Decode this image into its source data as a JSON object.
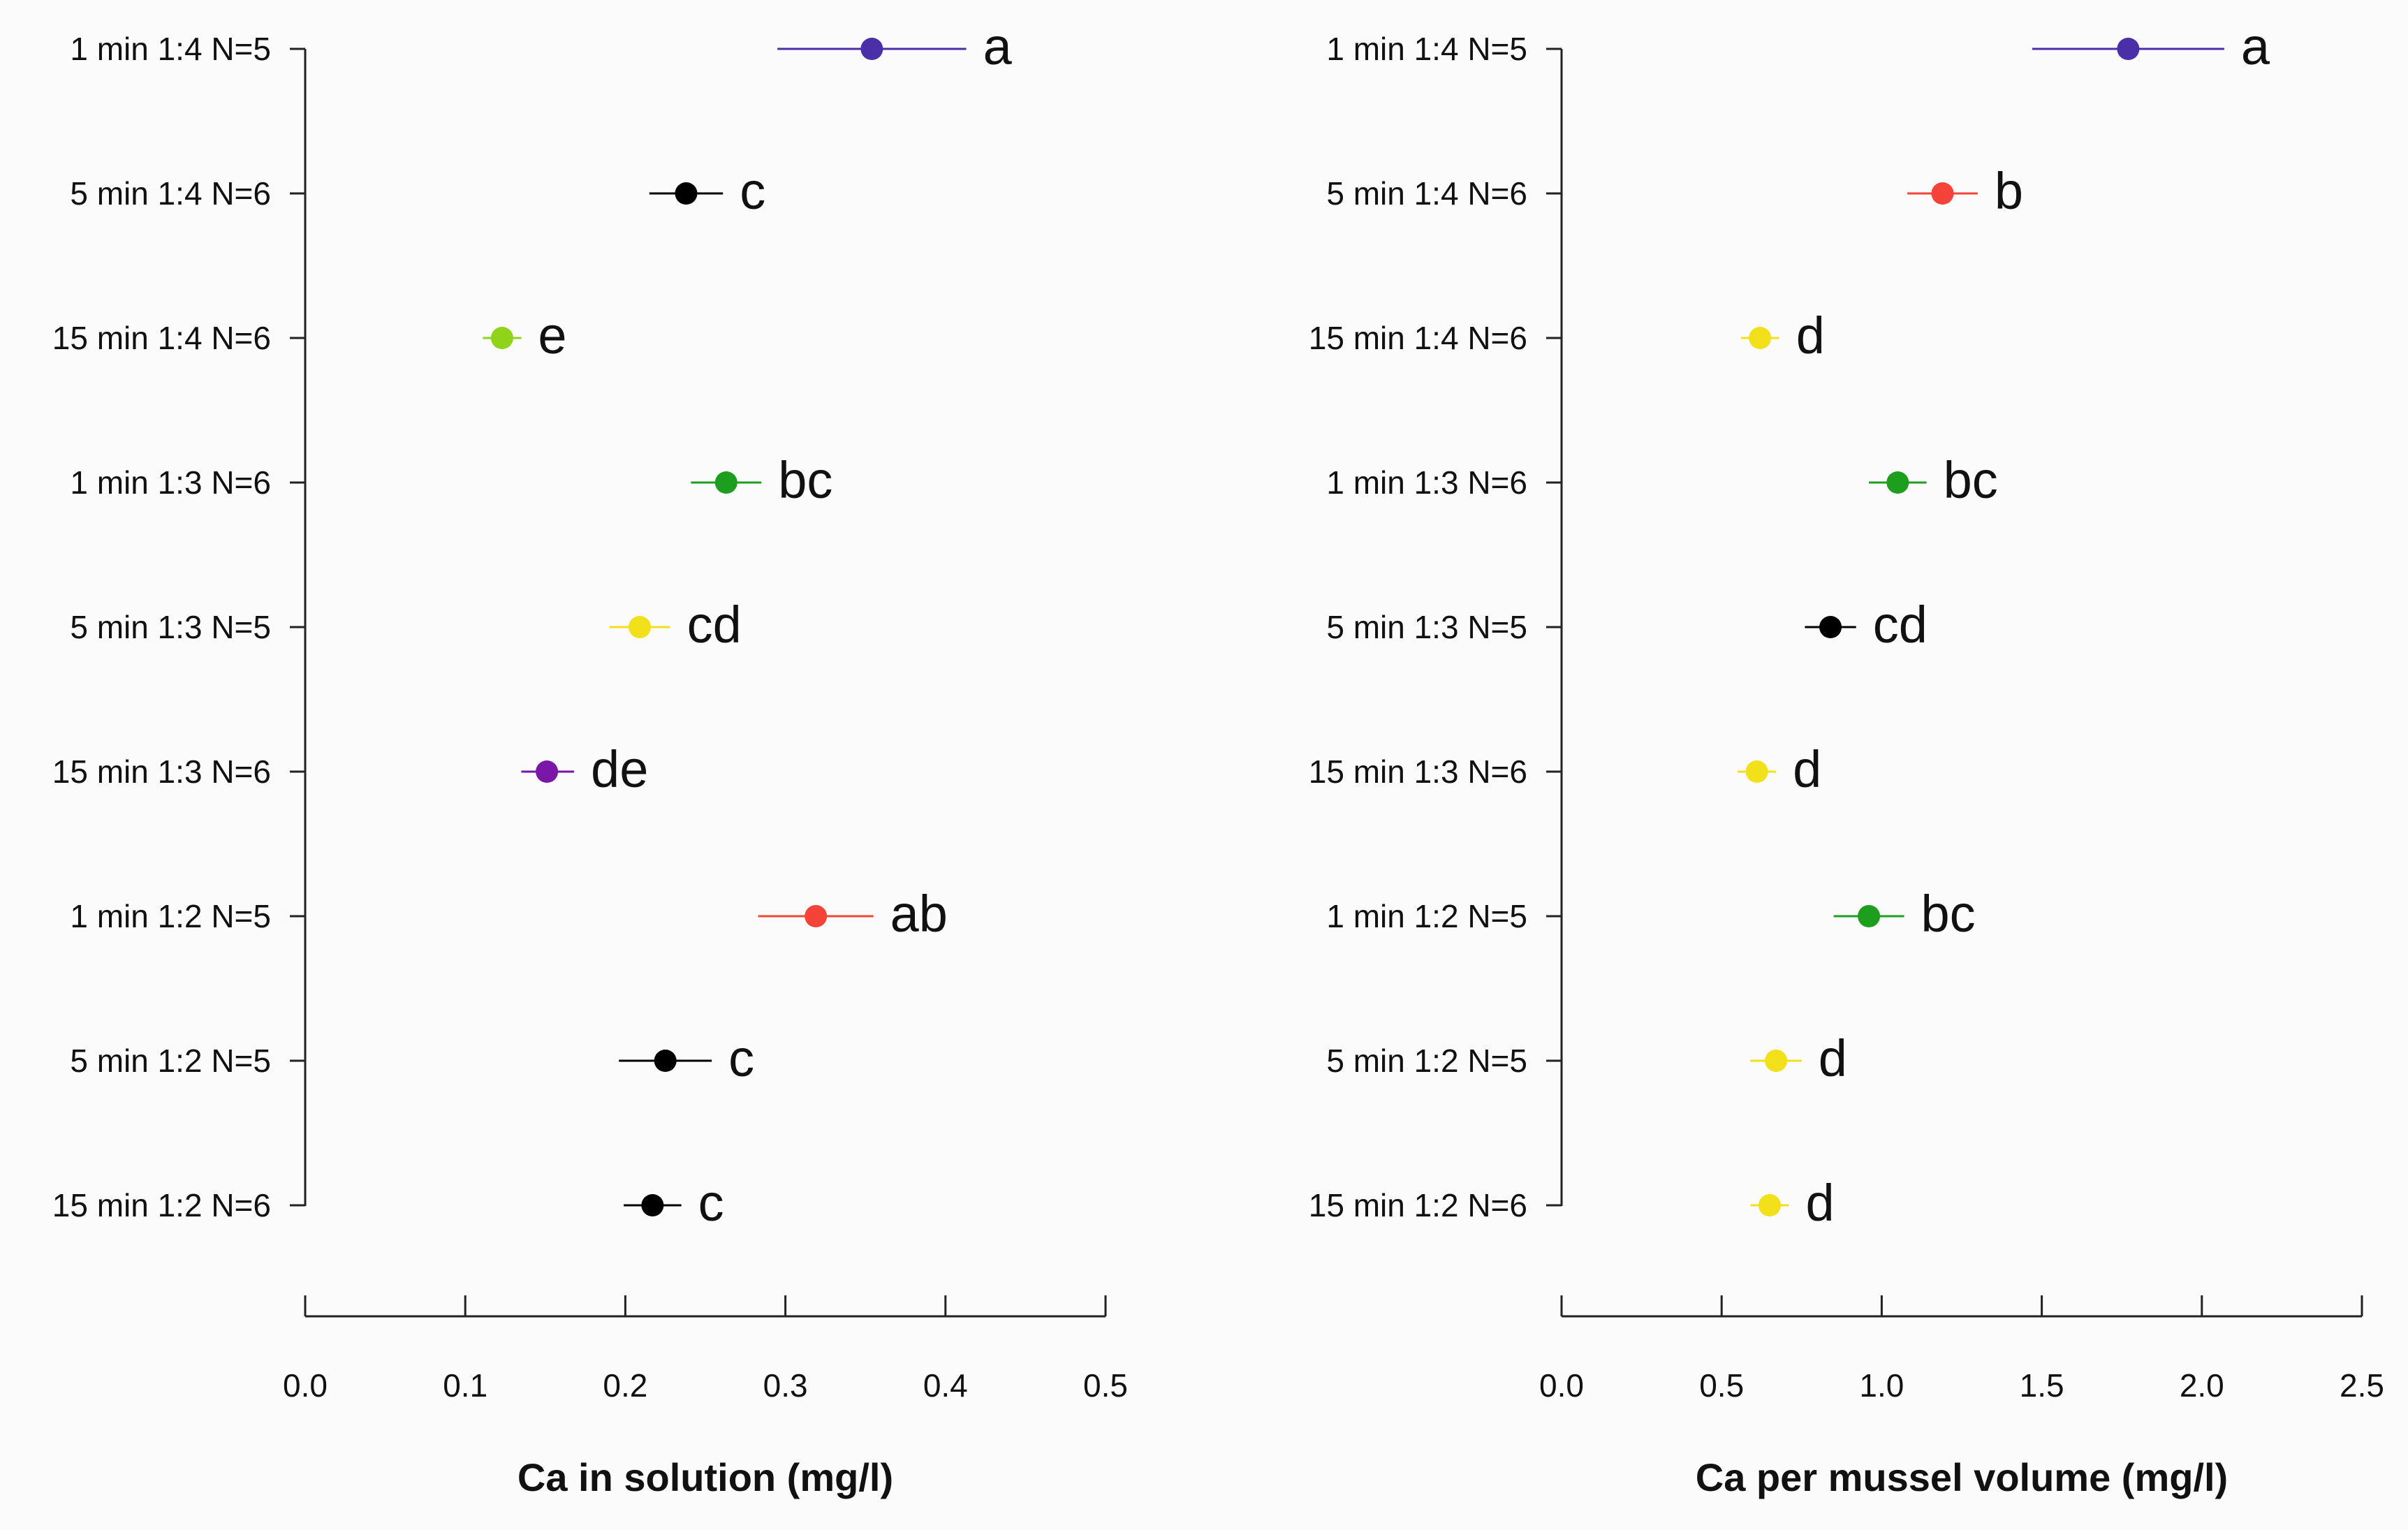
{
  "colors": {
    "indigo": "#4b2fa8",
    "red": "#f5433a",
    "green": "#1e9e1e",
    "lime": "#8fd31a",
    "yellow": "#f2e01a",
    "purple": "#7a16a8",
    "black": "#000000"
  },
  "chart_data": [
    {
      "type": "scatter",
      "subtype": "dot-with-error-bars",
      "xlabel": "Ca in solution (mg/l)",
      "xlim": [
        0,
        0.5
      ],
      "xticks": [
        0,
        0.1,
        0.2,
        0.3,
        0.4,
        0.5
      ],
      "xtick_labels": [
        "0.0",
        "0.1",
        "0.2",
        "0.3",
        "0.4",
        "0.5"
      ],
      "categories": [
        "1 min 1:4 N=5",
        "5 min 1:4 N=6",
        "15 min 1:4 N=6",
        "1 min 1:3 N=6",
        "5 min 1:3 N=5",
        "15 min 1:3 N=6",
        "1 min 1:2 N=5",
        "5 min 1:2 N=5",
        "15 min 1:2 N=6"
      ],
      "points": [
        {
          "value": 0.354,
          "low": 0.295,
          "high": 0.413,
          "letter": "a",
          "color": "indigo"
        },
        {
          "value": 0.238,
          "low": 0.215,
          "high": 0.261,
          "letter": "c",
          "color": "black"
        },
        {
          "value": 0.123,
          "low": 0.111,
          "high": 0.135,
          "letter": "e",
          "color": "lime"
        },
        {
          "value": 0.263,
          "low": 0.241,
          "high": 0.285,
          "letter": "bc",
          "color": "green"
        },
        {
          "value": 0.209,
          "low": 0.19,
          "high": 0.228,
          "letter": "cd",
          "color": "yellow"
        },
        {
          "value": 0.151,
          "low": 0.135,
          "high": 0.168,
          "letter": "de",
          "color": "purple"
        },
        {
          "value": 0.319,
          "low": 0.283,
          "high": 0.355,
          "letter": "ab",
          "color": "red"
        },
        {
          "value": 0.225,
          "low": 0.196,
          "high": 0.254,
          "letter": "c",
          "color": "black"
        },
        {
          "value": 0.217,
          "low": 0.199,
          "high": 0.235,
          "letter": "c",
          "color": "black"
        }
      ]
    },
    {
      "type": "scatter",
      "subtype": "dot-with-error-bars",
      "xlabel": "Ca per mussel volume (mg/l)",
      "xlim": [
        0,
        2.5
      ],
      "xticks": [
        0,
        0.5,
        1.0,
        1.5,
        2.0,
        2.5
      ],
      "xtick_labels": [
        "0.0",
        "0.5",
        "1.0",
        "1.5",
        "2.0",
        "2.5"
      ],
      "categories": [
        "1 min 1:4 N=5",
        "5 min 1:4 N=6",
        "15 min 1:4 N=6",
        "1 min 1:3 N=6",
        "5 min 1:3 N=5",
        "15 min 1:3 N=6",
        "1 min 1:2 N=5",
        "5 min 1:2 N=5",
        "15 min 1:2 N=6"
      ],
      "points": [
        {
          "value": 1.77,
          "low": 1.47,
          "high": 2.07,
          "letter": "a",
          "color": "indigo"
        },
        {
          "value": 1.19,
          "low": 1.08,
          "high": 1.3,
          "letter": "b",
          "color": "red"
        },
        {
          "value": 0.62,
          "low": 0.56,
          "high": 0.68,
          "letter": "d",
          "color": "yellow"
        },
        {
          "value": 1.05,
          "low": 0.96,
          "high": 1.14,
          "letter": "bc",
          "color": "green"
        },
        {
          "value": 0.84,
          "low": 0.76,
          "high": 0.92,
          "letter": "cd",
          "color": "black"
        },
        {
          "value": 0.61,
          "low": 0.55,
          "high": 0.67,
          "letter": "d",
          "color": "yellow"
        },
        {
          "value": 0.96,
          "low": 0.85,
          "high": 1.07,
          "letter": "bc",
          "color": "green"
        },
        {
          "value": 0.67,
          "low": 0.59,
          "high": 0.75,
          "letter": "d",
          "color": "yellow"
        },
        {
          "value": 0.65,
          "low": 0.59,
          "high": 0.71,
          "letter": "d",
          "color": "yellow"
        }
      ]
    }
  ]
}
